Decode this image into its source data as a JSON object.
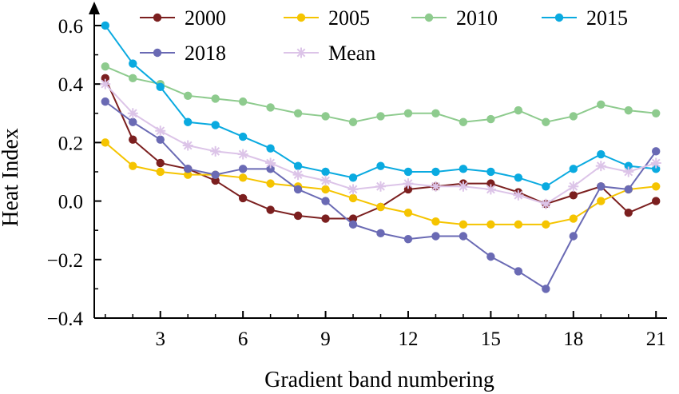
{
  "chart_data": {
    "type": "line",
    "title": "",
    "xlabel": "Gradient band numbering",
    "ylabel": "Heat Index",
    "xlim": [
      0.6,
      21.4
    ],
    "ylim": [
      -0.4,
      0.66
    ],
    "xticks": [
      3,
      6,
      9,
      12,
      15,
      18,
      21
    ],
    "xtick_labels": [
      "3",
      "6",
      "9",
      "12",
      "15",
      "18",
      "21"
    ],
    "yticks": [
      -0.4,
      -0.2,
      0.0,
      0.2,
      0.4,
      0.6
    ],
    "ytick_labels": [
      "−0.4",
      "−0.2",
      "0.0",
      "0.2",
      "0.4",
      "0.6"
    ],
    "grid": false,
    "legend_position": "top",
    "x": [
      1,
      2,
      3,
      4,
      5,
      6,
      7,
      8,
      9,
      10,
      11,
      12,
      13,
      14,
      15,
      16,
      17,
      18,
      19,
      20,
      21
    ],
    "series": [
      {
        "name": "2000",
        "color": "#7b1f1f",
        "marker": "circle",
        "values": [
          0.42,
          0.21,
          0.13,
          0.11,
          0.07,
          0.01,
          -0.03,
          -0.05,
          -0.06,
          -0.06,
          -0.02,
          0.04,
          0.05,
          0.06,
          0.06,
          0.03,
          -0.01,
          0.02,
          0.05,
          -0.04,
          0.0
        ]
      },
      {
        "name": "2005",
        "color": "#f5c400",
        "marker": "circle",
        "values": [
          0.2,
          0.12,
          0.1,
          0.09,
          0.09,
          0.08,
          0.06,
          0.05,
          0.04,
          0.01,
          -0.02,
          -0.04,
          -0.07,
          -0.08,
          -0.08,
          -0.08,
          -0.08,
          -0.06,
          0.0,
          0.04,
          0.05
        ]
      },
      {
        "name": "2010",
        "color": "#8ecb8e",
        "marker": "circle",
        "values": [
          0.46,
          0.42,
          0.4,
          0.36,
          0.35,
          0.34,
          0.32,
          0.3,
          0.29,
          0.27,
          0.29,
          0.3,
          0.3,
          0.27,
          0.28,
          0.31,
          0.27,
          0.29,
          0.33,
          0.31,
          0.3
        ]
      },
      {
        "name": "2015",
        "color": "#0aaae0",
        "marker": "circle",
        "values": [
          0.6,
          0.47,
          0.39,
          0.27,
          0.26,
          0.22,
          0.18,
          0.12,
          0.1,
          0.08,
          0.12,
          0.1,
          0.1,
          0.11,
          0.1,
          0.08,
          0.05,
          0.11,
          0.16,
          0.12,
          0.11
        ]
      },
      {
        "name": "2018",
        "color": "#6a6ab4",
        "marker": "circle",
        "values": [
          0.34,
          0.27,
          0.21,
          0.11,
          0.09,
          0.11,
          0.11,
          0.04,
          0.0,
          -0.08,
          -0.11,
          -0.13,
          -0.12,
          -0.12,
          -0.19,
          -0.24,
          -0.3,
          -0.12,
          0.05,
          0.04,
          0.17
        ]
      },
      {
        "name": "Mean",
        "color": "#dcc4e8",
        "marker": "asterisk",
        "values": [
          0.4,
          0.3,
          0.24,
          0.19,
          0.17,
          0.16,
          0.13,
          0.09,
          0.07,
          0.04,
          0.05,
          0.06,
          0.05,
          0.05,
          0.04,
          0.02,
          -0.01,
          0.05,
          0.12,
          0.1,
          0.13
        ]
      }
    ]
  }
}
